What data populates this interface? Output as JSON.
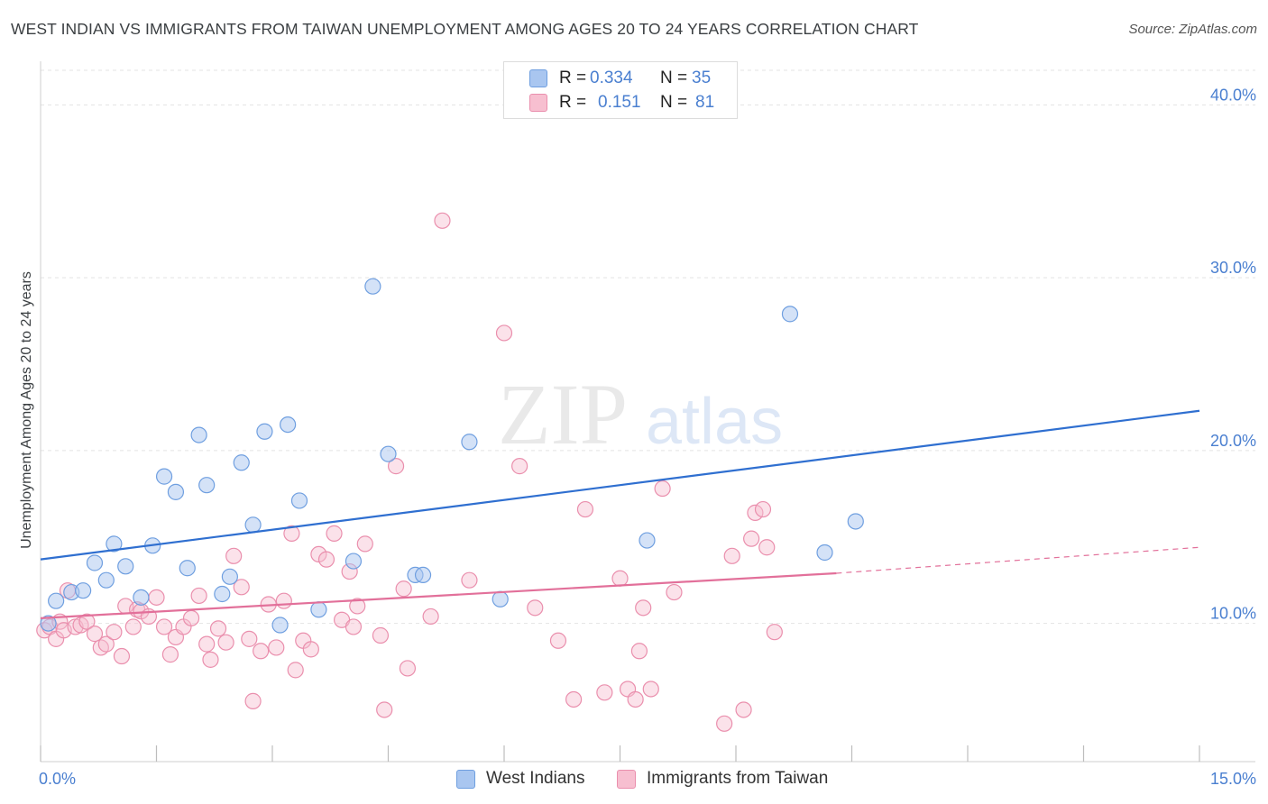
{
  "header": {
    "title": "WEST INDIAN VS IMMIGRANTS FROM TAIWAN UNEMPLOYMENT AMONG AGES 20 TO 24 YEARS CORRELATION CHART",
    "source": "Source: ZipAtlas.com"
  },
  "watermark": {
    "zip": "ZIP",
    "atlas": "atlas"
  },
  "legend": {
    "blue": {
      "r_label": "R =",
      "r_value": "0.334",
      "n_label": "N =",
      "n_value": "35"
    },
    "pink": {
      "r_label": "R =",
      "r_value": "0.151",
      "n_label": "N =",
      "n_value": "81"
    }
  },
  "bottom_legend": {
    "blue_label": "West Indians",
    "pink_label": "Immigrants from Taiwan"
  },
  "colors": {
    "blue_fill": "#a9c6f0",
    "blue_stroke": "#6f9fe0",
    "blue_line": "#2f6fd0",
    "pink_fill": "#f7bfd0",
    "pink_stroke": "#ea8fad",
    "pink_line": "#e2709a",
    "axis_text": "#4a7fd0",
    "grid": "#e3e3e3"
  },
  "chart_data": {
    "type": "scatter",
    "title": "WEST INDIAN VS IMMIGRANTS FROM TAIWAN UNEMPLOYMENT AMONG AGES 20 TO 24 YEARS CORRELATION CHART",
    "xlabel": "",
    "ylabel": "Unemployment Among Ages 20 to 24 years",
    "xlim": [
      0,
      15
    ],
    "ylim": [
      2,
      42
    ],
    "x_tick_labels": [
      "0.0%",
      "15.0%"
    ],
    "y_ticks": [
      10,
      20,
      30,
      40
    ],
    "y_tick_labels": [
      "10.0%",
      "20.0%",
      "30.0%",
      "40.0%"
    ],
    "grid": true,
    "legend_position": "top-center",
    "series": [
      {
        "name": "West Indians",
        "color": "blue",
        "trend": {
          "x": [
            0,
            15
          ],
          "y": [
            13.7,
            22.3
          ]
        },
        "points": [
          [
            0.1,
            10.0
          ],
          [
            0.2,
            11.3
          ],
          [
            0.4,
            11.8
          ],
          [
            0.55,
            11.9
          ],
          [
            0.7,
            13.5
          ],
          [
            0.85,
            12.5
          ],
          [
            0.95,
            14.6
          ],
          [
            1.1,
            13.3
          ],
          [
            1.3,
            11.5
          ],
          [
            1.45,
            14.5
          ],
          [
            1.6,
            18.5
          ],
          [
            1.75,
            17.6
          ],
          [
            1.9,
            13.2
          ],
          [
            2.05,
            20.9
          ],
          [
            2.15,
            18.0
          ],
          [
            2.35,
            11.7
          ],
          [
            2.45,
            12.7
          ],
          [
            2.6,
            19.3
          ],
          [
            2.75,
            15.7
          ],
          [
            2.9,
            21.1
          ],
          [
            3.1,
            9.9
          ],
          [
            3.2,
            21.5
          ],
          [
            3.35,
            17.1
          ],
          [
            3.6,
            10.8
          ],
          [
            4.05,
            13.6
          ],
          [
            4.3,
            29.5
          ],
          [
            4.5,
            19.8
          ],
          [
            4.85,
            12.8
          ],
          [
            4.95,
            12.8
          ],
          [
            5.55,
            20.5
          ],
          [
            5.95,
            11.4
          ],
          [
            7.85,
            14.8
          ],
          [
            9.7,
            27.9
          ],
          [
            10.15,
            14.1
          ],
          [
            10.55,
            15.9
          ]
        ]
      },
      {
        "name": "Immigrants from Taiwan",
        "color": "pink",
        "trend": {
          "x": [
            0,
            10.3
          ],
          "y": [
            10.3,
            12.9
          ]
        },
        "trend_dashed": {
          "x": [
            10.3,
            15
          ],
          "y": [
            12.9,
            14.4
          ]
        },
        "points": [
          [
            0.05,
            9.6
          ],
          [
            0.12,
            9.8
          ],
          [
            0.2,
            9.1
          ],
          [
            0.25,
            10.1
          ],
          [
            0.3,
            9.6
          ],
          [
            0.35,
            11.9
          ],
          [
            0.45,
            9.8
          ],
          [
            0.52,
            9.9
          ],
          [
            0.6,
            10.1
          ],
          [
            0.7,
            9.4
          ],
          [
            0.78,
            8.6
          ],
          [
            0.85,
            8.8
          ],
          [
            0.95,
            9.5
          ],
          [
            1.05,
            8.1
          ],
          [
            1.1,
            11.0
          ],
          [
            1.2,
            9.8
          ],
          [
            1.25,
            10.8
          ],
          [
            1.3,
            10.7
          ],
          [
            1.4,
            10.4
          ],
          [
            1.5,
            11.5
          ],
          [
            1.6,
            9.8
          ],
          [
            1.68,
            8.2
          ],
          [
            1.75,
            9.2
          ],
          [
            1.85,
            9.8
          ],
          [
            1.95,
            10.3
          ],
          [
            2.05,
            11.6
          ],
          [
            2.15,
            8.8
          ],
          [
            2.2,
            7.9
          ],
          [
            2.3,
            9.7
          ],
          [
            2.4,
            8.9
          ],
          [
            2.5,
            13.9
          ],
          [
            2.6,
            12.1
          ],
          [
            2.7,
            9.1
          ],
          [
            2.75,
            5.5
          ],
          [
            2.85,
            8.4
          ],
          [
            2.95,
            11.1
          ],
          [
            3.05,
            8.6
          ],
          [
            3.15,
            11.3
          ],
          [
            3.25,
            15.2
          ],
          [
            3.3,
            7.3
          ],
          [
            3.4,
            9.0
          ],
          [
            3.5,
            8.5
          ],
          [
            3.6,
            14.0
          ],
          [
            3.7,
            13.7
          ],
          [
            3.8,
            15.2
          ],
          [
            3.9,
            10.2
          ],
          [
            4.0,
            13.0
          ],
          [
            4.05,
            9.8
          ],
          [
            4.1,
            11.0
          ],
          [
            4.2,
            14.6
          ],
          [
            4.4,
            9.3
          ],
          [
            4.45,
            5.0
          ],
          [
            4.6,
            19.1
          ],
          [
            4.7,
            12.0
          ],
          [
            4.75,
            7.4
          ],
          [
            5.05,
            10.4
          ],
          [
            5.2,
            33.3
          ],
          [
            5.55,
            12.5
          ],
          [
            6.0,
            26.8
          ],
          [
            6.2,
            19.1
          ],
          [
            6.4,
            10.9
          ],
          [
            6.7,
            9.0
          ],
          [
            6.9,
            5.6
          ],
          [
            7.05,
            16.6
          ],
          [
            7.3,
            6.0
          ],
          [
            7.5,
            12.6
          ],
          [
            7.6,
            6.2
          ],
          [
            7.7,
            5.6
          ],
          [
            7.75,
            8.4
          ],
          [
            7.8,
            10.9
          ],
          [
            7.9,
            6.2
          ],
          [
            8.05,
            17.8
          ],
          [
            8.2,
            11.8
          ],
          [
            8.85,
            4.2
          ],
          [
            8.95,
            13.9
          ],
          [
            9.1,
            5.0
          ],
          [
            9.2,
            14.9
          ],
          [
            9.25,
            16.4
          ],
          [
            9.35,
            16.6
          ],
          [
            9.4,
            14.4
          ],
          [
            9.5,
            9.5
          ]
        ]
      }
    ]
  }
}
